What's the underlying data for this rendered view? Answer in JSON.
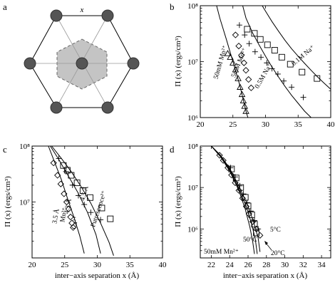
{
  "panels": [
    {
      "letter": "a"
    },
    {
      "letter": "b"
    },
    {
      "letter": "c"
    },
    {
      "letter": "d"
    }
  ],
  "lattice": {
    "spacing_label": "x"
  },
  "chart_data": [
    {
      "panel": "b",
      "type": "scatter",
      "ylabel": "Π (x) (ergs/cm³)",
      "xlabel": "",
      "y_scale": "log",
      "xlim": [
        20,
        40
      ],
      "ylim": [
        1000000,
        100000000
      ],
      "x_ticks": [
        20,
        25,
        30,
        35,
        40
      ],
      "y_ticks": [
        "10⁶",
        "10⁷",
        "10⁸"
      ],
      "annotations": [
        "50mM Mn²⁺",
        "5mM Mn²⁺",
        "0.5M Na⁺",
        "0.1M Na⁺"
      ],
      "series": [
        {
          "marker": "triangle",
          "x": [
            24.2,
            24.6,
            25.0,
            25.4,
            25.8,
            26.1,
            26.4,
            26.6,
            26.8,
            27.0
          ],
          "y": [
            14000000,
            12000000,
            9500000,
            7200000,
            5000000,
            3500000,
            2600000,
            2000000,
            1600000,
            1300000
          ]
        },
        {
          "marker": "diamond",
          "x": [
            25.4,
            25.9,
            26.3,
            26.7,
            27.0,
            27.4,
            27.8
          ],
          "y": [
            30000000,
            19000000,
            13000000,
            9500000,
            7000000,
            4800000,
            3400000
          ]
        },
        {
          "marker": "plus",
          "x": [
            26.0,
            26.8,
            27.5,
            28.4,
            29.3,
            30.2,
            31.0,
            31.9,
            32.8,
            34.0,
            35.8
          ],
          "y": [
            45000000,
            30000000,
            21000000,
            15000000,
            12000000,
            9500000,
            7500000,
            6000000,
            4500000,
            3500000,
            2300000
          ]
        },
        {
          "marker": "square",
          "x": [
            27.2,
            28.3,
            29.2,
            30.3,
            31.4,
            32.5,
            33.8,
            35.6,
            37.9
          ],
          "y": [
            38000000,
            32000000,
            25000000,
            20000000,
            16000000,
            12000000,
            9000000,
            6500000,
            5000000
          ]
        }
      ],
      "curves": [
        {
          "x": [
            22.5,
            23.0,
            24.0,
            25.0,
            26.0,
            26.5,
            27.0,
            27.3
          ],
          "y": [
            100000000,
            60000000,
            25000000,
            10000000,
            4000000,
            2300000,
            1300000,
            1000000
          ]
        },
        {
          "x": [
            26.5,
            27.0,
            28.0,
            29.0,
            30.0,
            31.0,
            32.0,
            33.0,
            34.0,
            35.0,
            36.0,
            37.0
          ],
          "y": [
            100000000,
            60000000,
            33000000,
            20000000,
            12500000,
            8000000,
            5300000,
            3600000,
            2500000,
            1800000,
            1300000,
            1000000
          ]
        },
        {
          "x": [
            29.5,
            30.0,
            31.0,
            32.0,
            33.0,
            34.0,
            35.0,
            36.0,
            37.0,
            38.0,
            39.0,
            40.0
          ],
          "y": [
            100000000,
            80000000,
            52000000,
            35000000,
            24000000,
            17000000,
            12500000,
            9300000,
            7000000,
            5300000,
            4100000,
            3200000
          ]
        }
      ]
    },
    {
      "panel": "c",
      "type": "scatter",
      "ylabel": "Π (x) (ergs/cm³)",
      "xlabel": "inter−axis separation  x (Å)",
      "y_scale": "log",
      "xlim": [
        20,
        40
      ],
      "ylim": [
        1000000,
        100000000
      ],
      "x_ticks": [
        20,
        25,
        30,
        35,
        40
      ],
      "y_ticks": [
        "10⁷",
        "10⁸"
      ],
      "annotations": [
        "3.5 Å",
        "Mn²⁺",
        "4.3 Å",
        "Ca²⁺",
        "4.5 Å",
        "Putrescence²⁺"
      ],
      "series": [
        {
          "marker": "diamond",
          "x": [
            23.3,
            23.9,
            24.4,
            24.9,
            25.3,
            25.6,
            25.9,
            26.1,
            26.3
          ],
          "y": [
            50000000,
            30000000,
            21000000,
            14000000,
            10000000,
            7500000,
            5400000,
            4200000,
            3500000
          ]
        },
        {
          "marker": "plus",
          "x": [
            24.1,
            25.2,
            26.2,
            27.1,
            28.0,
            29.0,
            30.5
          ],
          "y": [
            60000000,
            35000000,
            20000000,
            13000000,
            9000000,
            6500000,
            4800000
          ]
        },
        {
          "marker": "square",
          "x": [
            24.8,
            25.4,
            26.0,
            26.9,
            27.8,
            28.9,
            30.7,
            32.0
          ],
          "y": [
            45000000,
            37000000,
            30000000,
            22000000,
            16000000,
            12000000,
            7800000,
            5000000
          ]
        }
      ],
      "curves": [
        {
          "x": [
            22.5,
            23.5,
            24.5,
            25.5,
            26.5,
            27.3,
            28.0
          ],
          "y": [
            100000000,
            50000000,
            25000000,
            11000000,
            5000000,
            2500000,
            1200000
          ]
        },
        {
          "x": [
            22.8,
            24.0,
            25.5,
            27.0,
            28.5,
            29.8,
            30.5
          ],
          "y": [
            100000000,
            60000000,
            30000000,
            15000000,
            6500000,
            2600000,
            1200000
          ]
        },
        {
          "x": [
            23.0,
            24.5,
            26.0,
            27.5,
            29.0,
            30.5,
            31.8,
            32.5
          ],
          "y": [
            100000000,
            60000000,
            35000000,
            19000000,
            9500000,
            4200000,
            1900000,
            1100000
          ]
        }
      ]
    },
    {
      "panel": "d",
      "type": "scatter",
      "ylabel": "Π (x) (ergs/cm³)",
      "xlabel": "inter−axis separation  x (Å)",
      "y_scale": "log",
      "xlim": [
        20.8,
        35.0
      ],
      "ylim": [
        200000,
        100000000
      ],
      "x_ticks": [
        22,
        24,
        26,
        28,
        30,
        32,
        34
      ],
      "y_ticks": [
        "10⁶",
        "10⁷",
        "10⁸"
      ],
      "annotations": [
        "50mM Mn²⁺",
        "50°C",
        "5°C",
        "20°C"
      ],
      "series": [
        {
          "marker": "diamond",
          "x": [
            22.9,
            23.3,
            23.8,
            24.2,
            24.6,
            25.0,
            25.4,
            25.8,
            26.1,
            26.5,
            26.9,
            27.3
          ],
          "y": [
            60000000,
            45000000,
            30000000,
            20000000,
            13000000,
            8500000,
            5500000,
            3500000,
            2300000,
            1500000,
            1000000,
            700000
          ]
        },
        {
          "marker": "plus",
          "x": [
            24.1,
            24.6,
            25.1,
            25.5,
            25.9,
            26.3,
            26.7,
            27.1
          ],
          "y": [
            30000000,
            18000000,
            11000000,
            7000000,
            4300000,
            2700000,
            1600000,
            1000000
          ]
        },
        {
          "marker": "square",
          "x": [
            24.2,
            24.7,
            25.2,
            25.7,
            26.0,
            26.4,
            26.7,
            26.9
          ],
          "y": [
            28000000,
            17000000,
            10000000,
            5800000,
            3600000,
            2200000,
            1300000,
            800000
          ]
        }
      ],
      "curves": [
        {
          "x": [
            22.0,
            23.0,
            24.0,
            25.0,
            25.7,
            26.2,
            26.5,
            26.7
          ],
          "y": [
            100000000,
            55000000,
            25000000,
            8500000,
            3000000,
            1100000,
            500000,
            250000
          ]
        },
        {
          "x": [
            22.0,
            23.0,
            24.0,
            25.0,
            25.8,
            26.4,
            26.8,
            27.0
          ],
          "y": [
            100000000,
            58000000,
            27000000,
            9500000,
            3500000,
            1300000,
            550000,
            250000
          ]
        },
        {
          "x": [
            22.0,
            23.0,
            24.0,
            25.0,
            25.9,
            26.6,
            27.1,
            27.3
          ],
          "y": [
            100000000,
            60000000,
            29000000,
            11000000,
            4000000,
            1500000,
            600000,
            280000
          ]
        }
      ]
    }
  ]
}
